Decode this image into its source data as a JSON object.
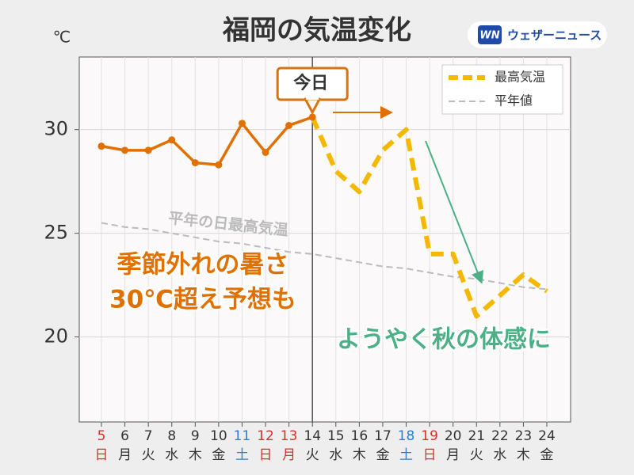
{
  "chart_data": {
    "type": "line",
    "title": "福岡の気温変化",
    "y_unit": "℃",
    "logo_mark": "WN",
    "logo_text": "ウェザーニュース",
    "categories": [
      "5",
      "6",
      "7",
      "8",
      "9",
      "10",
      "11",
      "12",
      "13",
      "14",
      "15",
      "16",
      "17",
      "18",
      "19",
      "20",
      "21",
      "22",
      "23",
      "24"
    ],
    "weekdays": [
      "日",
      "月",
      "火",
      "水",
      "木",
      "金",
      "土",
      "日",
      "月",
      "火",
      "水",
      "木",
      "金",
      "土",
      "日",
      "月",
      "火",
      "水",
      "木",
      "金"
    ],
    "label_colors": [
      "#d9302a",
      "#333333",
      "#333333",
      "#333333",
      "#333333",
      "#333333",
      "#2a7fd4",
      "#d9302a",
      "#d9302a",
      "#333333",
      "#333333",
      "#333333",
      "#333333",
      "#2a7fd4",
      "#d9302a",
      "#333333",
      "#333333",
      "#333333",
      "#333333",
      "#333333"
    ],
    "series": [
      {
        "color": "#e07000",
        "style": "solid-markers",
        "values": [
          29.2,
          29.0,
          29.0,
          29.5,
          28.4,
          28.3,
          30.3,
          28.9,
          30.2,
          30.6,
          null,
          null,
          null,
          null,
          null,
          null,
          null,
          null,
          null,
          null
        ]
      },
      {
        "name": "最高気温",
        "color": "#f5b800",
        "style": "dashed-thick",
        "values": [
          null,
          null,
          null,
          null,
          null,
          null,
          null,
          null,
          null,
          30.6,
          28.0,
          27.0,
          29.0,
          30.0,
          24.0,
          24.0,
          21.0,
          22.0,
          23.0,
          22.2
        ]
      },
      {
        "name": "平年値",
        "color": "#bbbbbb",
        "style": "dashed-thin",
        "values": [
          25.5,
          25.3,
          25.2,
          25.0,
          24.8,
          24.6,
          24.5,
          24.3,
          24.1,
          24.0,
          23.8,
          23.6,
          23.4,
          23.3,
          23.1,
          22.9,
          22.8,
          22.6,
          22.4,
          22.3
        ]
      }
    ],
    "ylim": [
      15.9,
      33.5
    ],
    "yticks": [
      20,
      25,
      30
    ],
    "grid": true,
    "legend": "upper right",
    "today_index": 9,
    "annotations": {
      "today": "今日",
      "normal_label": "平年の日最高気温",
      "hot_1": "季節外れの暑さ",
      "hot_2": "30℃超え予想も",
      "cool": "ようやく秋の体感に"
    }
  }
}
